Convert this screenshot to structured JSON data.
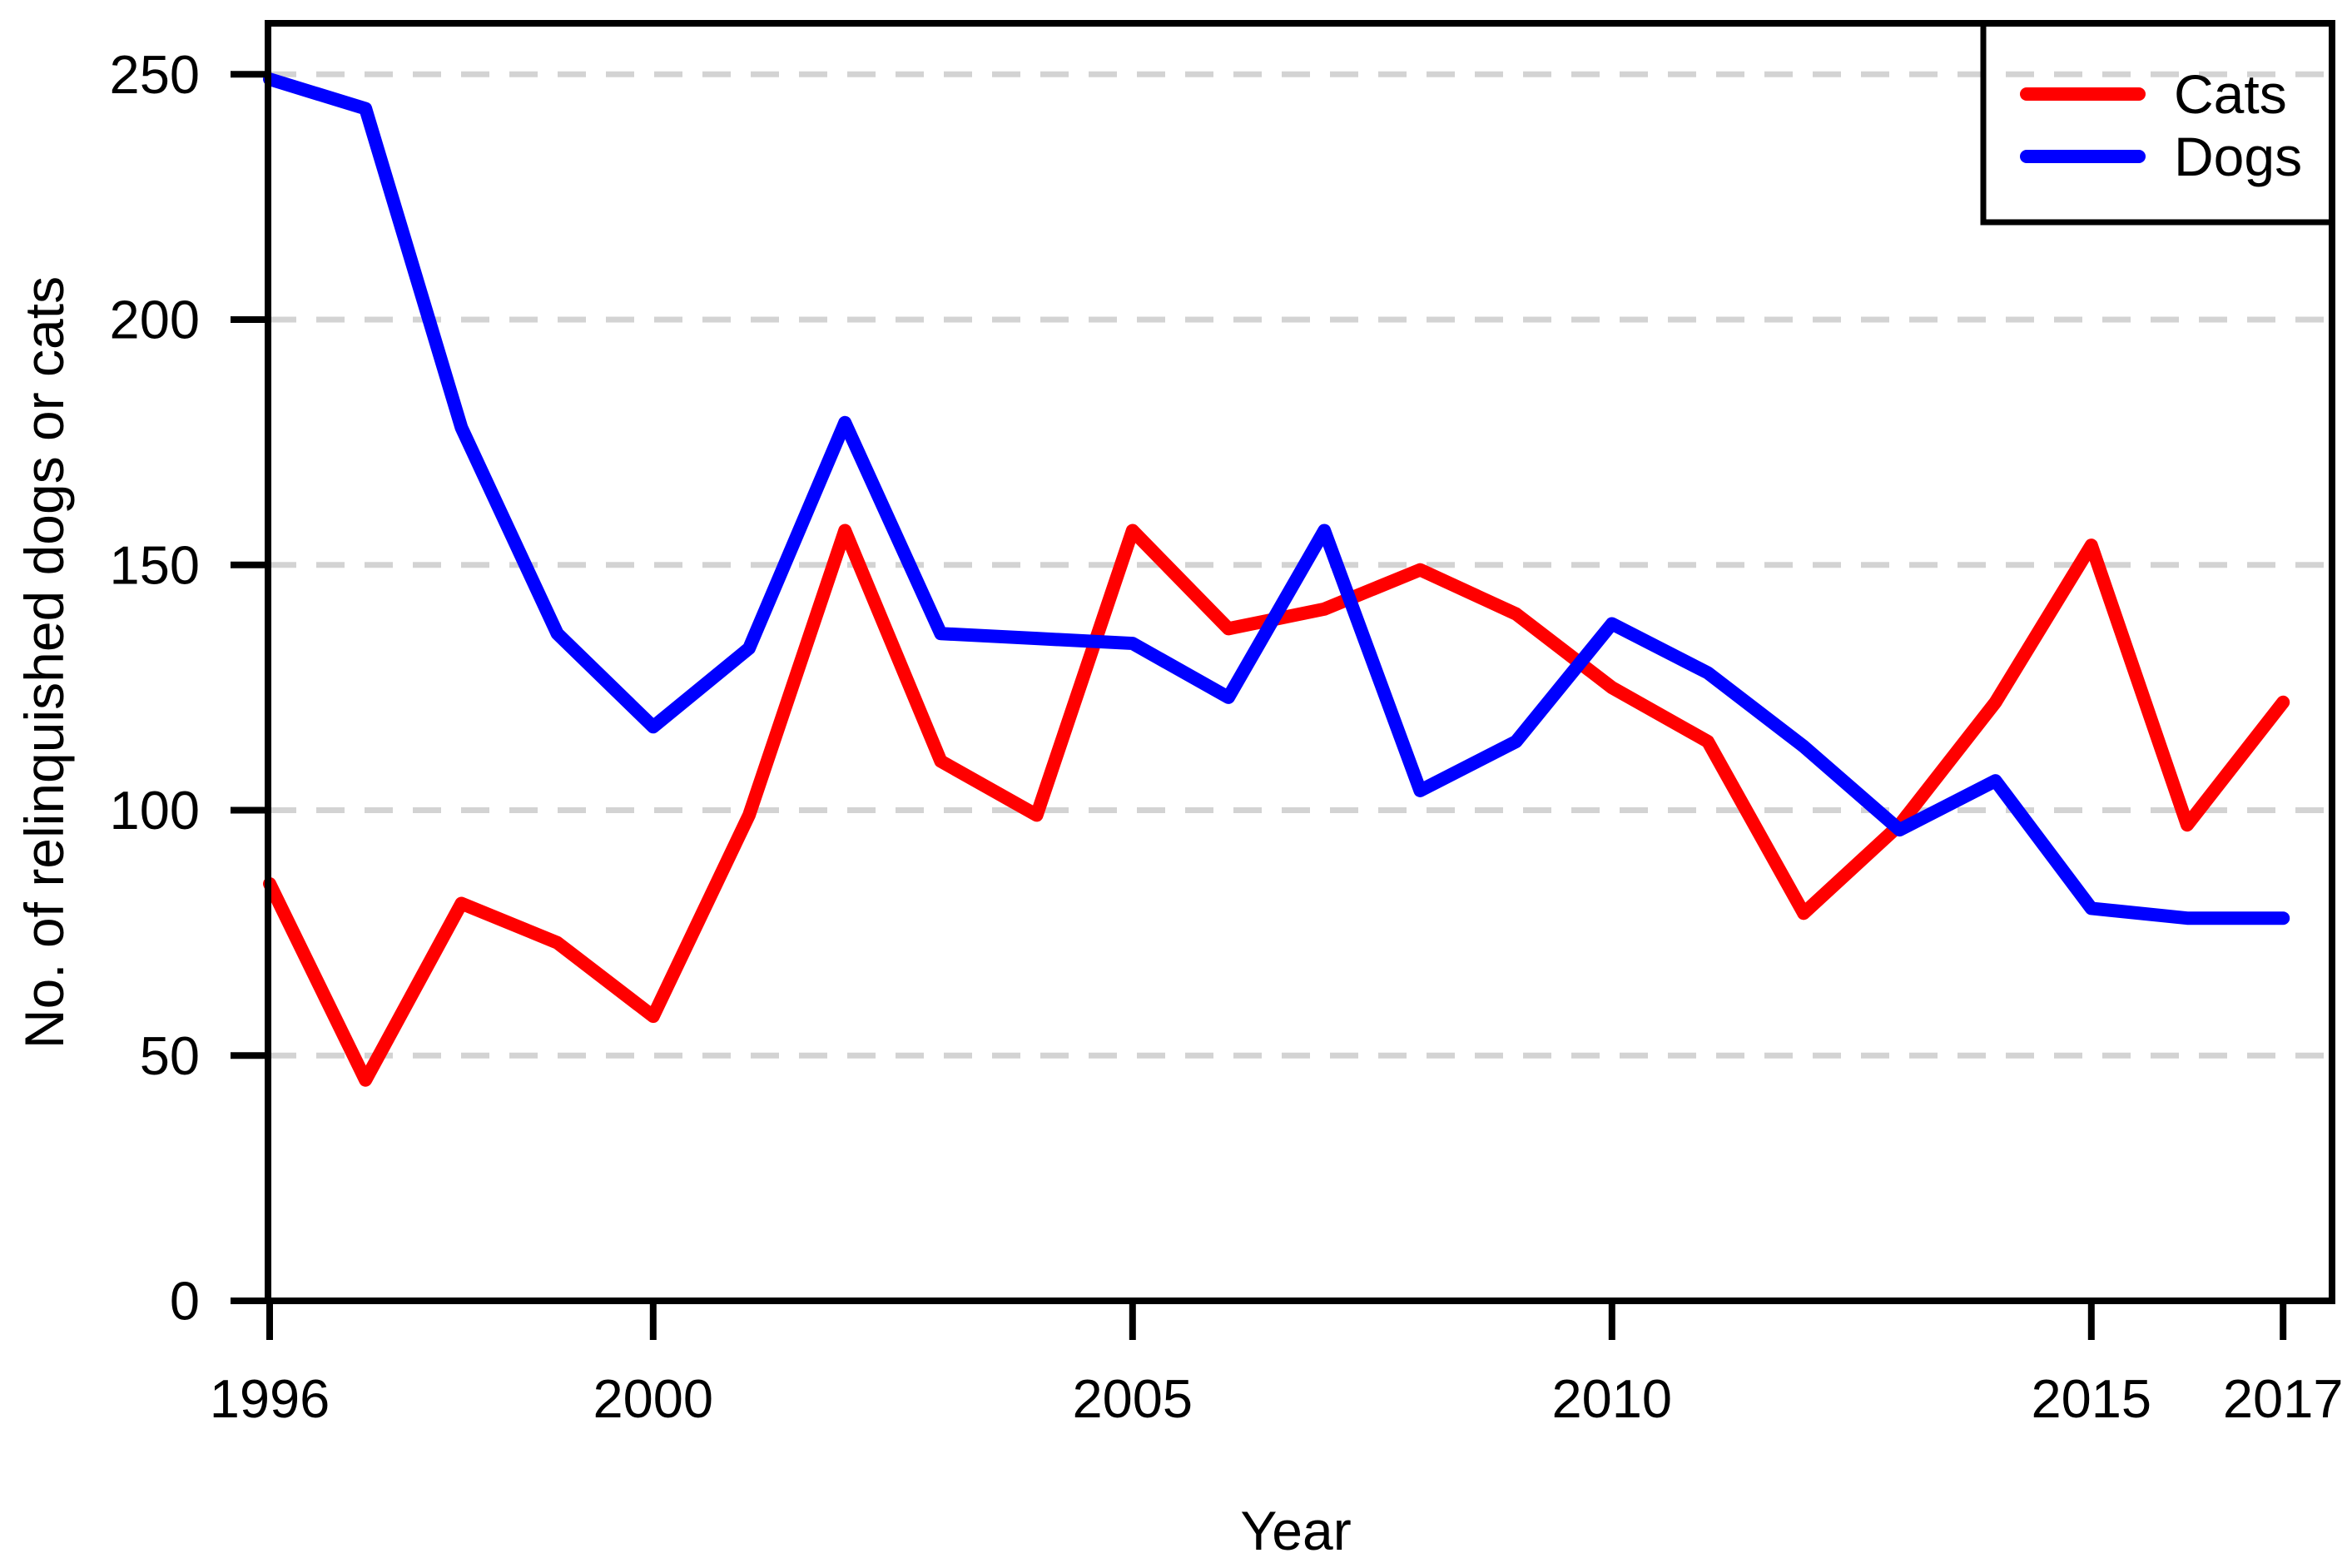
{
  "chart_data": {
    "type": "line",
    "title": "",
    "xlabel": "Year",
    "ylabel": "No. of relinquished dogs or cats",
    "x": [
      1996,
      1997,
      1998,
      1999,
      2000,
      2001,
      2002,
      2003,
      2004,
      2005,
      2006,
      2007,
      2008,
      2009,
      2010,
      2011,
      2012,
      2013,
      2014,
      2015,
      2016,
      2017
    ],
    "series": [
      {
        "name": "Cats",
        "color": "#ff0000",
        "values": [
          85,
          45,
          81,
          73,
          58,
          99,
          157,
          110,
          99,
          157,
          137,
          141,
          149,
          140,
          125,
          114,
          79,
          97,
          122,
          154,
          97,
          122
        ]
      },
      {
        "name": "Dogs",
        "color": "#0000ff",
        "values": [
          249,
          243,
          178,
          136,
          117,
          133,
          179,
          136,
          135,
          134,
          123,
          157,
          104,
          114,
          138,
          128,
          113,
          96,
          106,
          80,
          78,
          78
        ]
      }
    ],
    "xticks": [
      1996,
      2000,
      2005,
      2010,
      2015,
      2017
    ],
    "yticks": [
      0,
      50,
      100,
      150,
      200,
      250
    ],
    "xlim": [
      1996,
      2017.5
    ],
    "ylim": [
      0,
      260
    ],
    "grid": "horizontal-dashed",
    "grid_color": "#d3d3d3",
    "axis_color": "#000000",
    "legend_position": "top-right",
    "legend_entries": [
      "Cats",
      "Dogs"
    ]
  }
}
